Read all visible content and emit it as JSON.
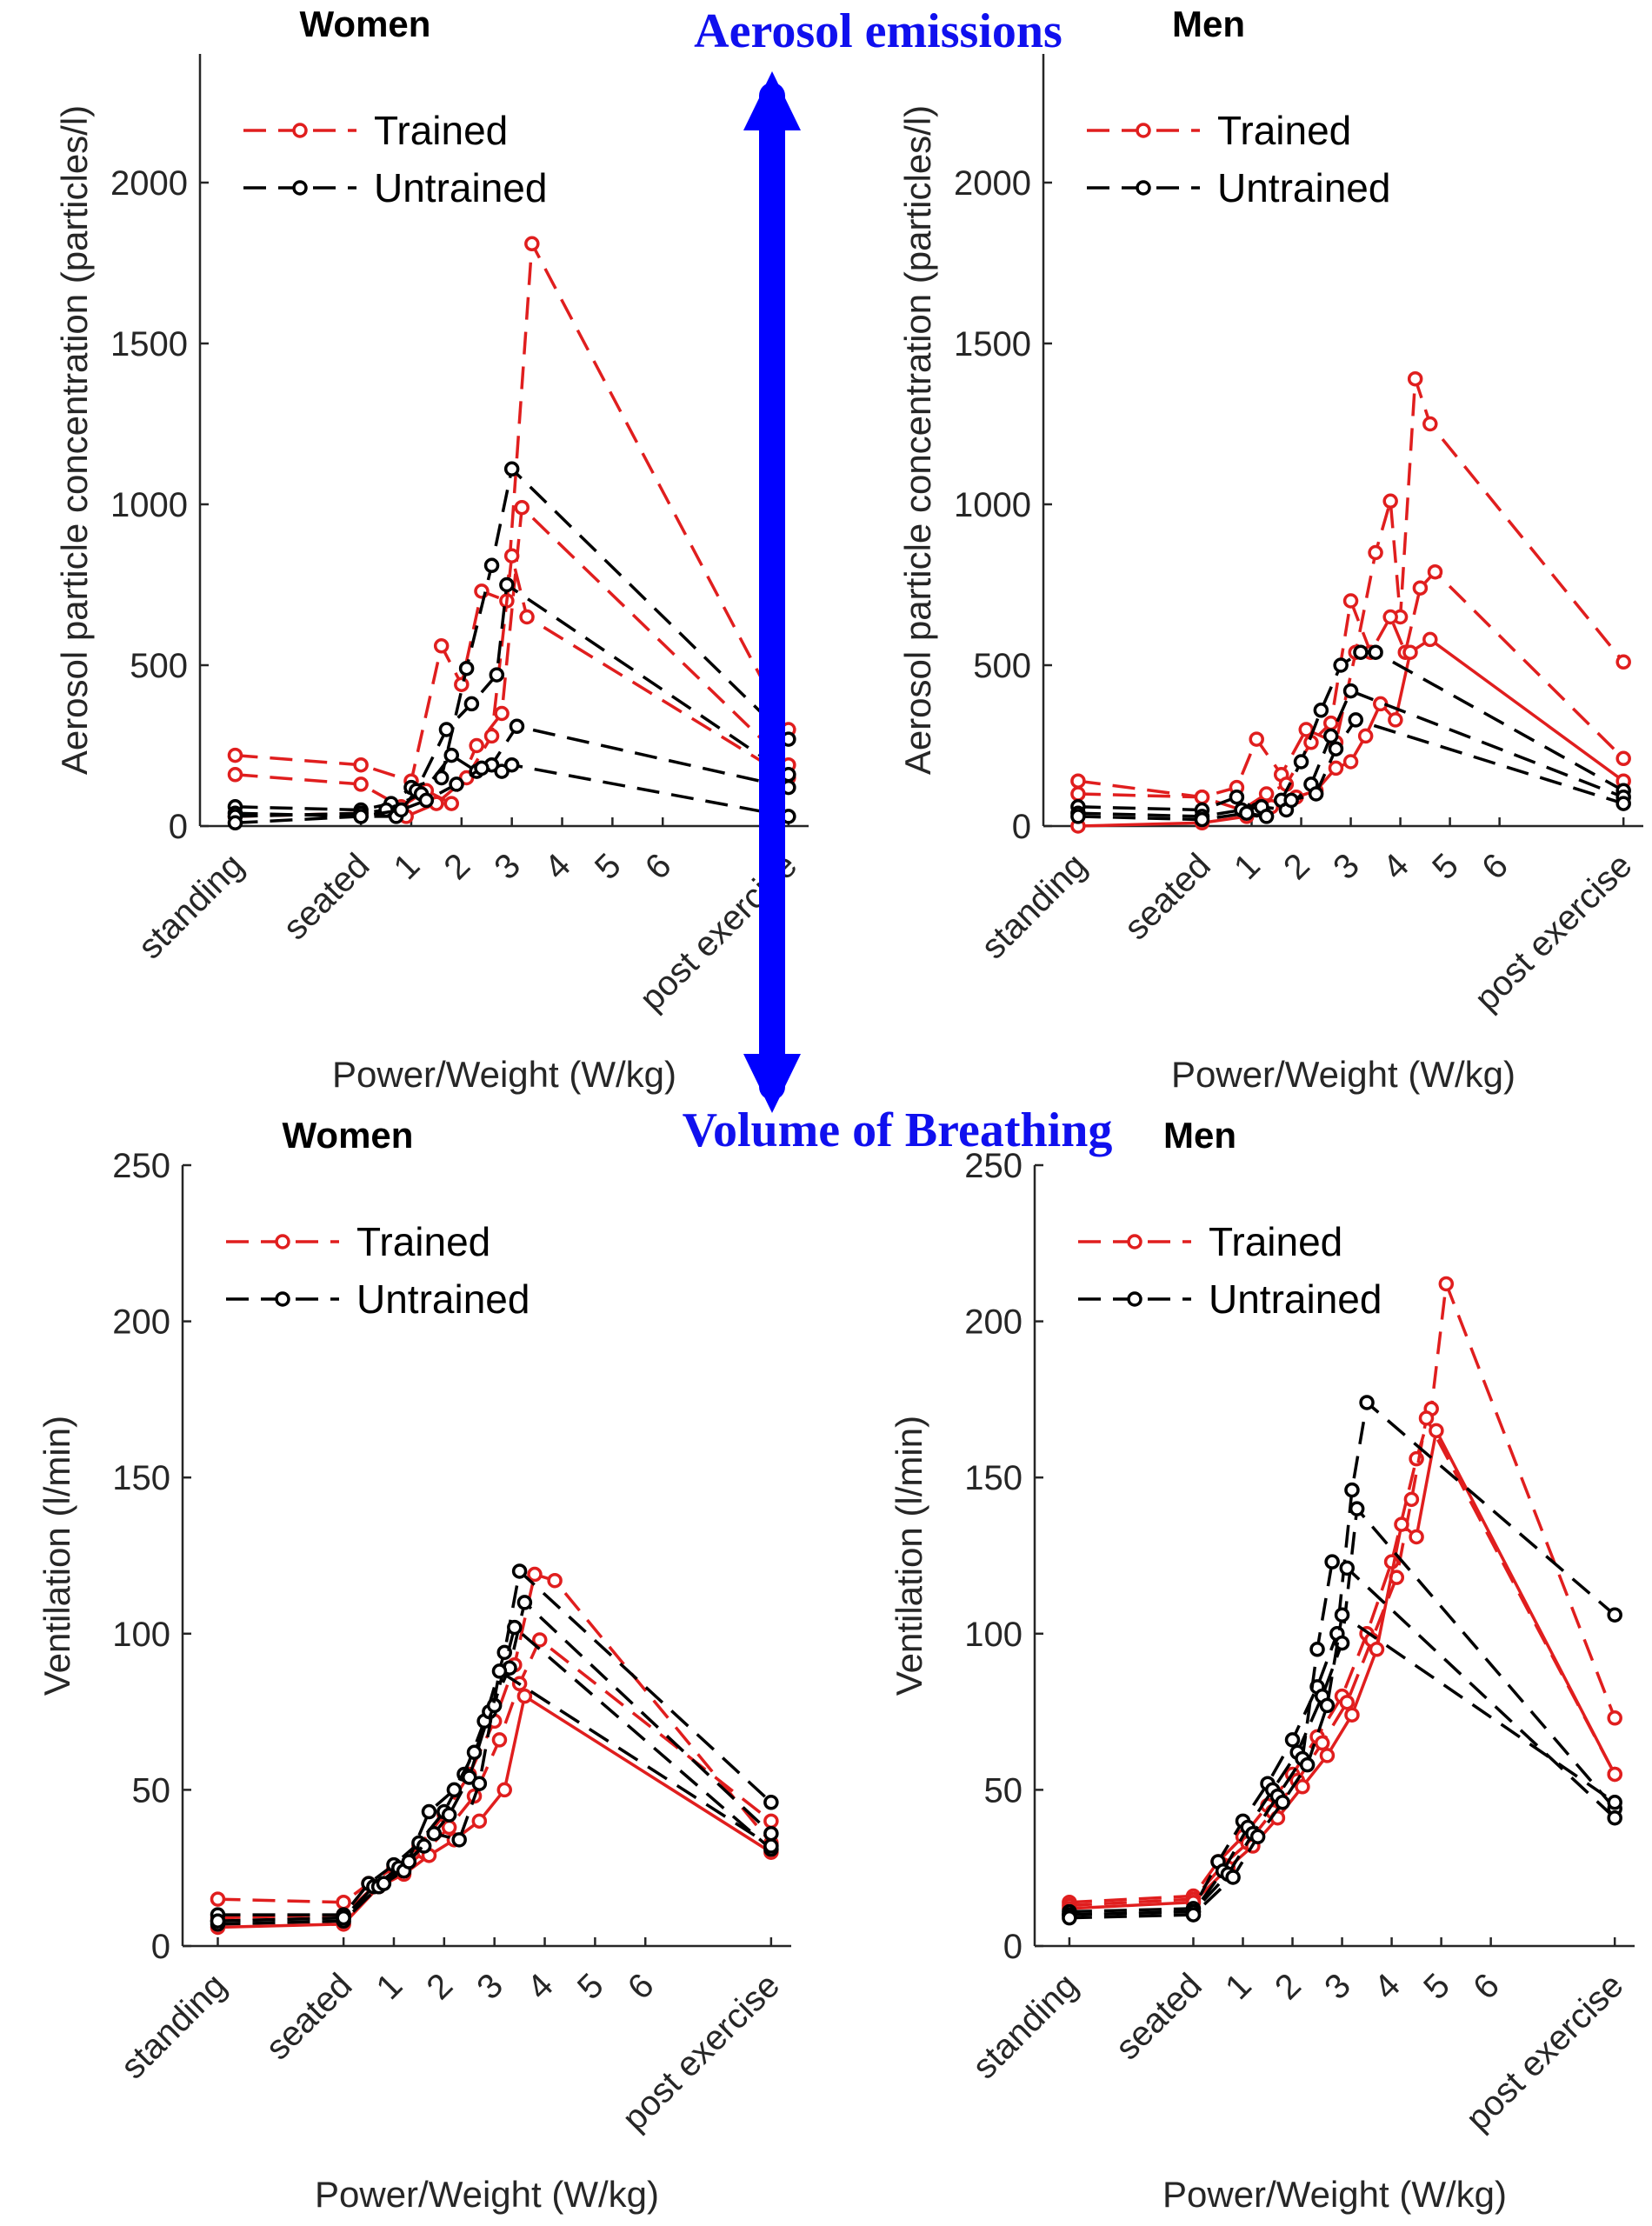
{
  "annotations": {
    "top": "Aerosol emissions",
    "bottom": "Volume of Breathing",
    "arrow_color": "#0000ff"
  },
  "colors": {
    "trained": "#e01e1e",
    "untrained": "#000000"
  },
  "chart_data": [
    {
      "type": "line",
      "title": "Women",
      "xlabel": "Power/Weight (W/kg)",
      "ylabel": "Aerosol particle concentration (particles/l)",
      "ylim": [
        0,
        2400
      ],
      "yticks": [
        0,
        500,
        1000,
        1500,
        2000
      ],
      "xlim": [
        -3.2,
        8.9
      ],
      "xticks": [
        {
          "x": -2.5,
          "label": "standing"
        },
        {
          "x": 0,
          "label": "seated"
        },
        {
          "x": 1,
          "label": "1"
        },
        {
          "x": 2,
          "label": "2"
        },
        {
          "x": 3,
          "label": "3"
        },
        {
          "x": 4,
          "label": "4"
        },
        {
          "x": 5,
          "label": "5"
        },
        {
          "x": 6,
          "label": "6"
        },
        {
          "x": 8.5,
          "label": "post exercise"
        }
      ],
      "grid": false,
      "legend": {
        "location": "top-left",
        "entries": [
          "Trained",
          "Untrained"
        ]
      },
      "series": [
        {
          "group": "Trained",
          "style": "dashed",
          "x": [
            -2.5,
            0,
            1.0,
            1.6,
            2.0,
            2.4,
            2.9,
            3.4,
            8.5
          ],
          "y": [
            220,
            190,
            140,
            560,
            440,
            730,
            700,
            1810,
            300
          ]
        },
        {
          "group": "Trained",
          "style": "dashed",
          "x": [
            -2.5,
            0,
            0.8,
            1.3,
            1.8,
            2.3,
            2.8,
            3.2,
            8.5
          ],
          "y": [
            160,
            130,
            60,
            110,
            70,
            250,
            350,
            990,
            190
          ]
        },
        {
          "group": "Trained",
          "style": "dashed",
          "x": [
            -2.5,
            0,
            0.9,
            1.5,
            2.1,
            2.6,
            3.0,
            3.3,
            8.5
          ],
          "y": [
            30,
            40,
            30,
            70,
            150,
            280,
            840,
            650,
            150
          ]
        },
        {
          "group": "Untrained",
          "style": "dashed",
          "x": [
            -2.5,
            0,
            0.6,
            1.0,
            1.6,
            2.1,
            2.6,
            3.0,
            8.5
          ],
          "y": [
            60,
            50,
            70,
            120,
            150,
            490,
            810,
            1110,
            270
          ]
        },
        {
          "group": "Untrained",
          "style": "dashed",
          "x": [
            -2.5,
            0,
            0.7,
            1.1,
            1.7,
            2.2,
            2.7,
            2.9,
            8.5
          ],
          "y": [
            40,
            30,
            30,
            110,
            300,
            380,
            470,
            750,
            160
          ]
        },
        {
          "group": "Untrained",
          "style": "dashed",
          "x": [
            -2.5,
            0,
            0.5,
            1.2,
            1.8,
            2.3,
            2.6,
            3.1,
            8.5
          ],
          "y": [
            30,
            40,
            50,
            100,
            220,
            170,
            190,
            310,
            120
          ]
        },
        {
          "group": "Untrained",
          "style": "dashed",
          "x": [
            -2.5,
            0,
            0.8,
            1.3,
            1.9,
            2.4,
            2.8,
            3.0,
            8.5
          ],
          "y": [
            10,
            30,
            50,
            80,
            130,
            180,
            170,
            190,
            30
          ]
        }
      ]
    },
    {
      "type": "line",
      "title": "Men",
      "xlabel": "Power/Weight (W/kg)",
      "ylabel": "Aerosol particle concentration (particles/l)",
      "ylim": [
        0,
        2400
      ],
      "yticks": [
        0,
        500,
        1000,
        1500,
        2000
      ],
      "xlim": [
        -3.2,
        8.9
      ],
      "xticks": [
        {
          "x": -2.5,
          "label": "standing"
        },
        {
          "x": 0,
          "label": "seated"
        },
        {
          "x": 1,
          "label": "1"
        },
        {
          "x": 2,
          "label": "2"
        },
        {
          "x": 3,
          "label": "3"
        },
        {
          "x": 4,
          "label": "4"
        },
        {
          "x": 5,
          "label": "5"
        },
        {
          "x": 6,
          "label": "6"
        },
        {
          "x": 8.5,
          "label": "post exercise"
        }
      ],
      "grid": false,
      "legend": {
        "location": "top-left",
        "entries": [
          "Trained",
          "Untrained"
        ]
      },
      "series": [
        {
          "group": "Trained",
          "style": "dashed",
          "x": [
            -2.5,
            0,
            0.7,
            1.1,
            1.6,
            2.1,
            2.7,
            3.1,
            3.5,
            3.8,
            4.0,
            4.3,
            4.6,
            8.5
          ],
          "y": [
            100,
            90,
            120,
            270,
            160,
            300,
            260,
            540,
            850,
            1010,
            650,
            1390,
            1250,
            510
          ]
        },
        {
          "group": "Trained",
          "style": "dashed",
          "x": [
            -2.5,
            0,
            0.8,
            1.3,
            1.7,
            2.2,
            2.6,
            3.0,
            3.4,
            3.8,
            4.1,
            4.4,
            4.7,
            8.5
          ],
          "y": [
            140,
            90,
            50,
            100,
            130,
            260,
            320,
            700,
            540,
            650,
            540,
            740,
            790,
            210
          ]
        },
        {
          "group": "Trained",
          "style": "solid",
          "x": [
            -2.5,
            0,
            0.9,
            1.4,
            1.9,
            2.3,
            2.7,
            3.0,
            3.3,
            3.6,
            3.9,
            4.2,
            4.6,
            8.5
          ],
          "y": [
            0,
            10,
            30,
            60,
            90,
            110,
            180,
            200,
            280,
            380,
            330,
            540,
            580,
            140
          ]
        },
        {
          "group": "Untrained",
          "style": "dashed",
          "x": [
            -2.5,
            0,
            0.7,
            1.1,
            1.6,
            2.0,
            2.4,
            2.8,
            3.2,
            3.5,
            8.5
          ],
          "y": [
            60,
            50,
            90,
            50,
            80,
            200,
            360,
            500,
            540,
            540,
            110
          ]
        },
        {
          "group": "Untrained",
          "style": "dashed",
          "x": [
            -2.5,
            0,
            0.8,
            1.2,
            1.7,
            2.2,
            2.6,
            3.0,
            8.5
          ],
          "y": [
            40,
            30,
            50,
            60,
            50,
            130,
            280,
            420,
            90
          ]
        },
        {
          "group": "Untrained",
          "style": "dashed",
          "x": [
            -2.5,
            0,
            0.9,
            1.3,
            1.8,
            2.3,
            2.7,
            3.1,
            8.5
          ],
          "y": [
            30,
            20,
            40,
            30,
            80,
            100,
            240,
            330,
            70
          ]
        }
      ]
    },
    {
      "type": "line",
      "title": "Women",
      "xlabel": "Power/Weight (W/kg)",
      "ylabel": "Ventilation (l/min)",
      "ylim": [
        0,
        250
      ],
      "yticks": [
        0,
        50,
        100,
        150,
        200,
        250
      ],
      "xlim": [
        -3.2,
        8.9
      ],
      "xticks": [
        {
          "x": -2.5,
          "label": "standing"
        },
        {
          "x": 0,
          "label": "seated"
        },
        {
          "x": 1,
          "label": "1"
        },
        {
          "x": 2,
          "label": "2"
        },
        {
          "x": 3,
          "label": "3"
        },
        {
          "x": 4,
          "label": "4"
        },
        {
          "x": 5,
          "label": "5"
        },
        {
          "x": 6,
          "label": "6"
        },
        {
          "x": 8.5,
          "label": "post exercise"
        }
      ],
      "grid": false,
      "legend": {
        "location": "top-left",
        "entries": [
          "Trained",
          "Untrained"
        ]
      },
      "series": [
        {
          "group": "Trained",
          "style": "dashed",
          "x": [
            -2.5,
            0,
            0.5,
            1.0,
            1.5,
            2.0,
            2.5,
            3.0,
            3.4,
            3.8,
            4.2,
            8.5
          ],
          "y": [
            15,
            14,
            20,
            25,
            32,
            42,
            55,
            72,
            90,
            119,
            117,
            33
          ]
        },
        {
          "group": "Trained",
          "style": "dashed",
          "x": [
            -2.5,
            0,
            0.6,
            1.1,
            1.6,
            2.1,
            2.6,
            3.1,
            3.5,
            3.9,
            8.5
          ],
          "y": [
            9,
            10,
            19,
            24,
            30,
            38,
            48,
            66,
            84,
            98,
            40
          ]
        },
        {
          "group": "Trained",
          "style": "solid",
          "x": [
            -2.5,
            0,
            0.7,
            1.2,
            1.7,
            2.2,
            2.7,
            3.2,
            3.6,
            8.5
          ],
          "y": [
            6,
            7,
            19,
            23,
            29,
            34,
            40,
            50,
            80,
            30
          ]
        },
        {
          "group": "Untrained",
          "style": "dashed",
          "x": [
            -2.5,
            0,
            0.5,
            1.0,
            1.5,
            2.0,
            2.4,
            2.8,
            3.2,
            3.5,
            8.5
          ],
          "y": [
            10,
            10,
            20,
            26,
            33,
            43,
            55,
            72,
            94,
            120,
            46
          ]
        },
        {
          "group": "Untrained",
          "style": "dashed",
          "x": [
            -2.5,
            0,
            0.6,
            1.1,
            1.6,
            2.1,
            2.5,
            2.9,
            3.3,
            3.6,
            8.5
          ],
          "y": [
            8,
            9,
            19,
            25,
            32,
            42,
            54,
            75,
            89,
            110,
            36
          ]
        },
        {
          "group": "Untrained",
          "style": "dashed",
          "x": [
            -2.5,
            0,
            0.7,
            1.2,
            1.7,
            2.2,
            2.6,
            3.0,
            3.4,
            8.5
          ],
          "y": [
            7,
            8,
            19,
            24,
            43,
            50,
            62,
            77,
            102,
            31
          ]
        },
        {
          "group": "Untrained",
          "style": "dashed",
          "x": [
            -2.5,
            0,
            0.8,
            1.3,
            1.8,
            2.3,
            2.7,
            3.1,
            8.5
          ],
          "y": [
            8,
            9,
            20,
            27,
            36,
            34,
            52,
            88,
            32
          ]
        }
      ]
    },
    {
      "type": "line",
      "title": "Men",
      "xlabel": "Power/Weight (W/kg)",
      "ylabel": "Ventilation (l/min)",
      "ylim": [
        0,
        250
      ],
      "yticks": [
        0,
        50,
        100,
        150,
        200,
        250
      ],
      "xlim": [
        -3.2,
        8.9
      ],
      "xticks": [
        {
          "x": -2.5,
          "label": "standing"
        },
        {
          "x": 0,
          "label": "seated"
        },
        {
          "x": 1,
          "label": "1"
        },
        {
          "x": 2,
          "label": "2"
        },
        {
          "x": 3,
          "label": "3"
        },
        {
          "x": 4,
          "label": "4"
        },
        {
          "x": 5,
          "label": "5"
        },
        {
          "x": 6,
          "label": "6"
        },
        {
          "x": 8.5,
          "label": "post exercise"
        }
      ],
      "grid": false,
      "legend": {
        "location": "top-left",
        "entries": [
          "Trained",
          "Untrained"
        ]
      },
      "series": [
        {
          "group": "Trained",
          "style": "dashed",
          "x": [
            -2.5,
            0,
            0.5,
            1.0,
            1.5,
            2.0,
            2.5,
            3.0,
            3.5,
            4.0,
            4.5,
            4.8,
            5.1,
            8.5
          ],
          "y": [
            14,
            16,
            27,
            35,
            45,
            55,
            67,
            80,
            100,
            123,
            156,
            172,
            212,
            73
          ]
        },
        {
          "group": "Trained",
          "style": "dashed",
          "x": [
            -2.5,
            0,
            0.6,
            1.1,
            1.6,
            2.1,
            2.6,
            3.1,
            3.6,
            4.1,
            4.4,
            4.7,
            8.5
          ],
          "y": [
            13,
            15,
            26,
            33,
            43,
            53,
            65,
            78,
            98,
            118,
            143,
            169,
            55
          ]
        },
        {
          "group": "Trained",
          "style": "solid",
          "x": [
            -2.5,
            0,
            0.7,
            1.2,
            1.7,
            2.2,
            2.7,
            3.2,
            3.7,
            4.2,
            4.5,
            4.9,
            8.5
          ],
          "y": [
            12,
            14,
            25,
            32,
            41,
            51,
            61,
            74,
            95,
            135,
            131,
            165,
            55
          ]
        },
        {
          "group": "Untrained",
          "style": "dashed",
          "x": [
            -2.5,
            0,
            0.5,
            1.0,
            1.5,
            2.0,
            2.5,
            2.9,
            3.2,
            3.5,
            8.5
          ],
          "y": [
            11,
            12,
            27,
            40,
            52,
            66,
            83,
            100,
            146,
            174,
            106
          ]
        },
        {
          "group": "Untrained",
          "style": "dashed",
          "x": [
            -2.5,
            0,
            0.6,
            1.1,
            1.6,
            2.1,
            2.6,
            3.0,
            3.3,
            8.5
          ],
          "y": [
            10,
            11,
            24,
            38,
            50,
            62,
            80,
            97,
            140,
            44
          ]
        },
        {
          "group": "Untrained",
          "style": "dashed",
          "x": [
            -2.5,
            0,
            0.7,
            1.2,
            1.7,
            2.2,
            2.5,
            2.8,
            3.1,
            8.5
          ],
          "y": [
            10,
            11,
            23,
            36,
            48,
            60,
            95,
            123,
            121,
            41
          ]
        },
        {
          "group": "Untrained",
          "style": "dashed",
          "x": [
            -2.5,
            0,
            0.8,
            1.3,
            1.8,
            2.3,
            2.7,
            3.0,
            8.5
          ],
          "y": [
            9,
            10,
            22,
            35,
            46,
            58,
            77,
            106,
            46
          ]
        }
      ]
    }
  ]
}
